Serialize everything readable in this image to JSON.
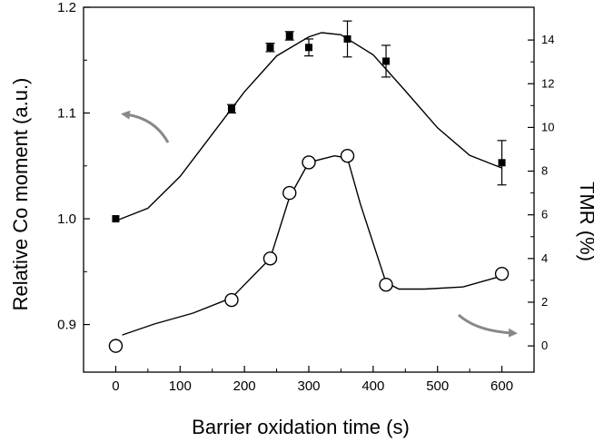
{
  "chart_data": {
    "type": "scatter",
    "title": "",
    "xlabel": "Barrier oxidation time (s)",
    "ylabel": "Relative Co moment (a.u.)",
    "y2label": "TMR (%)",
    "xlim": [
      -50,
      650
    ],
    "ylim": [
      0.855,
      1.2
    ],
    "y2lim": [
      -1.2,
      15.5
    ],
    "x_ticks": [
      0,
      100,
      200,
      300,
      400,
      500,
      600
    ],
    "y_ticks": [
      0.9,
      1.0,
      1.1,
      1.2
    ],
    "y_tick_labels": [
      "0.9",
      "1.0",
      "1.1",
      "1.2"
    ],
    "y2_ticks": [
      0,
      2,
      4,
      6,
      8,
      10,
      12,
      14
    ],
    "grid": false,
    "series": [
      {
        "axis": "left",
        "marker": "filled-square",
        "x": [
          0,
          180,
          240,
          270,
          300,
          360,
          420,
          600
        ],
        "values": [
          1.0,
          1.104,
          1.162,
          1.173,
          1.162,
          1.17,
          1.149,
          1.053
        ],
        "error": [
          0,
          0.004,
          0.004,
          0.004,
          0.008,
          0.017,
          0.015,
          0.021
        ],
        "fit_x": [
          0,
          50,
          100,
          150,
          200,
          250,
          300,
          320,
          350,
          400,
          450,
          500,
          550,
          600
        ],
        "fit_y": [
          0.998,
          1.01,
          1.04,
          1.08,
          1.12,
          1.154,
          1.172,
          1.176,
          1.174,
          1.155,
          1.121,
          1.086,
          1.06,
          1.048
        ]
      },
      {
        "axis": "right",
        "marker": "open-circle",
        "x": [
          0,
          180,
          240,
          270,
          300,
          360,
          420,
          600
        ],
        "values": [
          0,
          2.1,
          4.0,
          7.0,
          8.4,
          8.7,
          2.8,
          3.3
        ],
        "fit_x": [
          10,
          60,
          120,
          180,
          240,
          270,
          300,
          340,
          360,
          380,
          420,
          440,
          480,
          540,
          600
        ],
        "fit_y": [
          0.5,
          1.0,
          1.5,
          2.2,
          4.0,
          6.8,
          8.4,
          8.7,
          8.6,
          6.5,
          2.9,
          2.6,
          2.6,
          2.7,
          3.2
        ]
      }
    ],
    "annotations": [
      {
        "kind": "curved-arrow",
        "direction": "left",
        "meaning": "points to left axis"
      },
      {
        "kind": "curved-arrow",
        "direction": "right",
        "meaning": "points to right axis"
      }
    ],
    "colors": {
      "data": "#000000",
      "arrow": "#888888"
    }
  }
}
